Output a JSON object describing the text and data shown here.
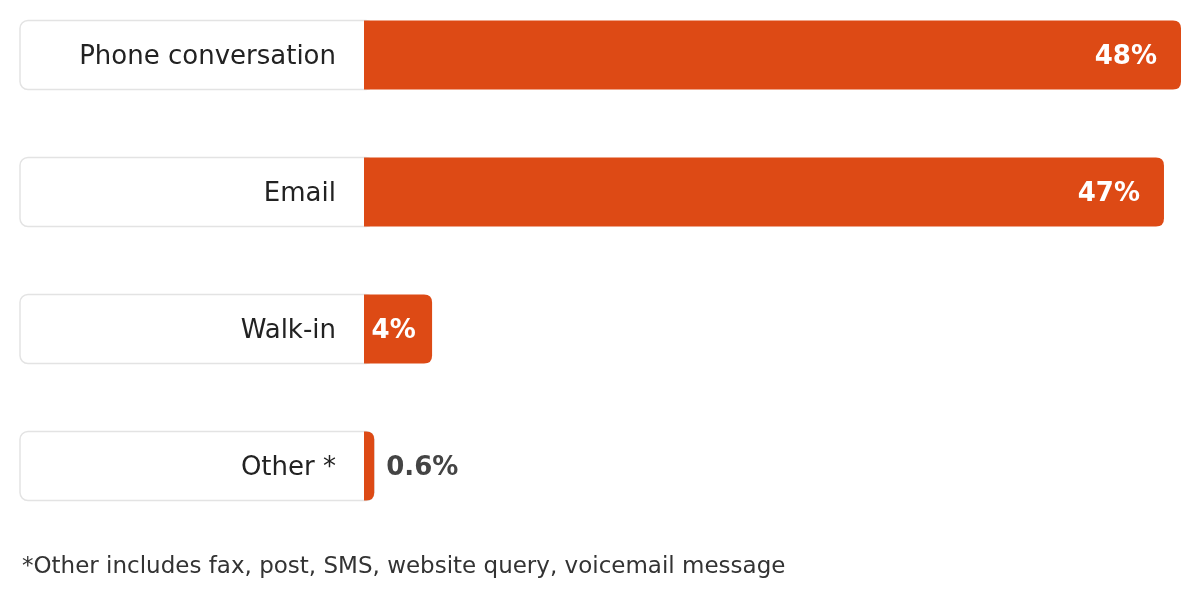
{
  "chart_data": {
    "type": "bar",
    "orientation": "horizontal",
    "categories": [
      "Phone conversation",
      "Email",
      "Walk-in",
      "Other *"
    ],
    "values": [
      48,
      47,
      4,
      0.6
    ],
    "value_labels": [
      "48%",
      "47%",
      "4%",
      "0.6%"
    ],
    "color": "#dd4a15",
    "annotations": [
      "*Other includes fax, post, SMS, website query, voicemail message"
    ]
  }
}
